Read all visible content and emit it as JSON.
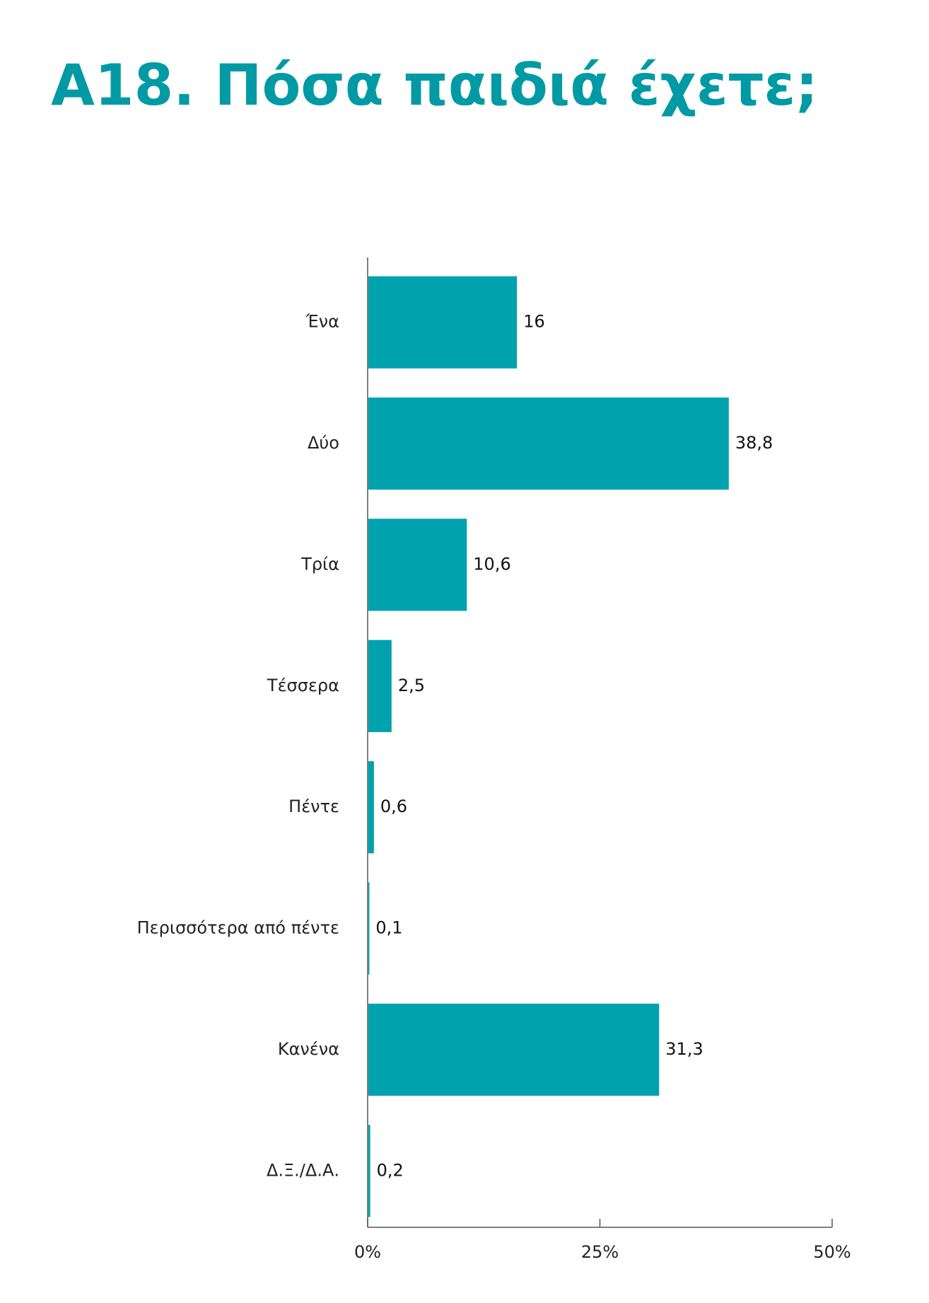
{
  "chart_data": {
    "type": "barh",
    "title": "Α18. Πόσα παιδιά έχετε;",
    "categories": [
      "Ένα",
      "Δύο",
      "Τρία",
      "Τέσσερα",
      "Πέντε",
      "Περισσότερα από πέντε",
      "Κανένα",
      "Δ.Ξ./Δ.Α."
    ],
    "values": [
      16,
      38.8,
      10.6,
      2.5,
      0.6,
      0.1,
      31.3,
      0.2
    ],
    "value_labels": [
      "16",
      "38,8",
      "10,6",
      "2,5",
      "0,6",
      "0,1",
      "31,3",
      "0,2"
    ],
    "color": "#00a2ae",
    "xlim": [
      0,
      50
    ],
    "xticks": [
      {
        "value": 0,
        "label": "0%"
      },
      {
        "value": 25,
        "label": "25%"
      },
      {
        "value": 50,
        "label": "50%"
      }
    ]
  }
}
